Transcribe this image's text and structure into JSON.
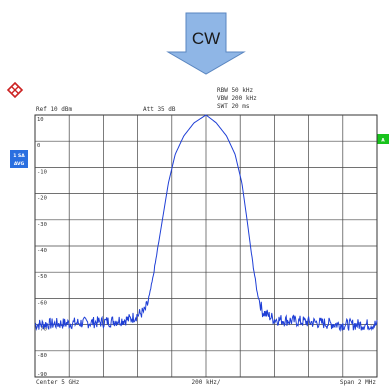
{
  "arrow_label": "CW",
  "header": {
    "ref": "Ref  10 dBm",
    "att": "Att  35 dB",
    "rbw": "RBW 50 kHz",
    "vbw": "VBW 200 kHz",
    "swt": "SWT 20 ms"
  },
  "badges": {
    "left_top": "1 SA",
    "left_bottom": "AVG",
    "right": "A"
  },
  "footer": {
    "center": "Center  5 GHz",
    "per_div": "200 kHz/",
    "span": "Span  2 MHz"
  },
  "colors": {
    "trace": "#1f3fd6",
    "arrow_fill": "#8fb6e6",
    "arrow_stroke": "#5a86c0",
    "badge_blue": "#2a6fe0",
    "badge_green": "#18c31c",
    "logo": "#cc2222",
    "grid": "#444444"
  },
  "chart_data": {
    "type": "line",
    "title": "",
    "xlabel": "",
    "ylabel": "",
    "y_ticks": [
      "10",
      "0",
      "-10",
      "-20",
      "-30",
      "-40",
      "-50",
      "-60",
      "-70",
      "-80",
      "-90"
    ],
    "ylim": [
      -90,
      10
    ],
    "xlim": [
      4.999,
      5.001
    ],
    "x_unit": "GHz",
    "grid": true,
    "series": [
      {
        "points": [
          [
            4.999,
            -70
          ],
          [
            4.9992,
            -69.5
          ],
          [
            4.9994,
            -69
          ],
          [
            4.99955,
            -68
          ],
          [
            4.99964,
            -65
          ],
          [
            4.99966,
            -62
          ],
          [
            4.99969,
            -52
          ],
          [
            4.99972,
            -40
          ],
          [
            4.99975,
            -28
          ],
          [
            4.99978,
            -16
          ],
          [
            4.99982,
            -5
          ],
          [
            4.99987,
            2
          ],
          [
            4.99993,
            7
          ],
          [
            5.0,
            10
          ],
          [
            5.00006,
            7
          ],
          [
            5.00012,
            2
          ],
          [
            5.00017,
            -5
          ],
          [
            5.00021,
            -16
          ],
          [
            5.00024,
            -30
          ],
          [
            5.00027,
            -45
          ],
          [
            5.0003,
            -58
          ],
          [
            5.00033,
            -65
          ],
          [
            5.0004,
            -68
          ],
          [
            5.0006,
            -69
          ],
          [
            5.0008,
            -70
          ],
          [
            5.001,
            -70
          ]
        ]
      }
    ]
  }
}
